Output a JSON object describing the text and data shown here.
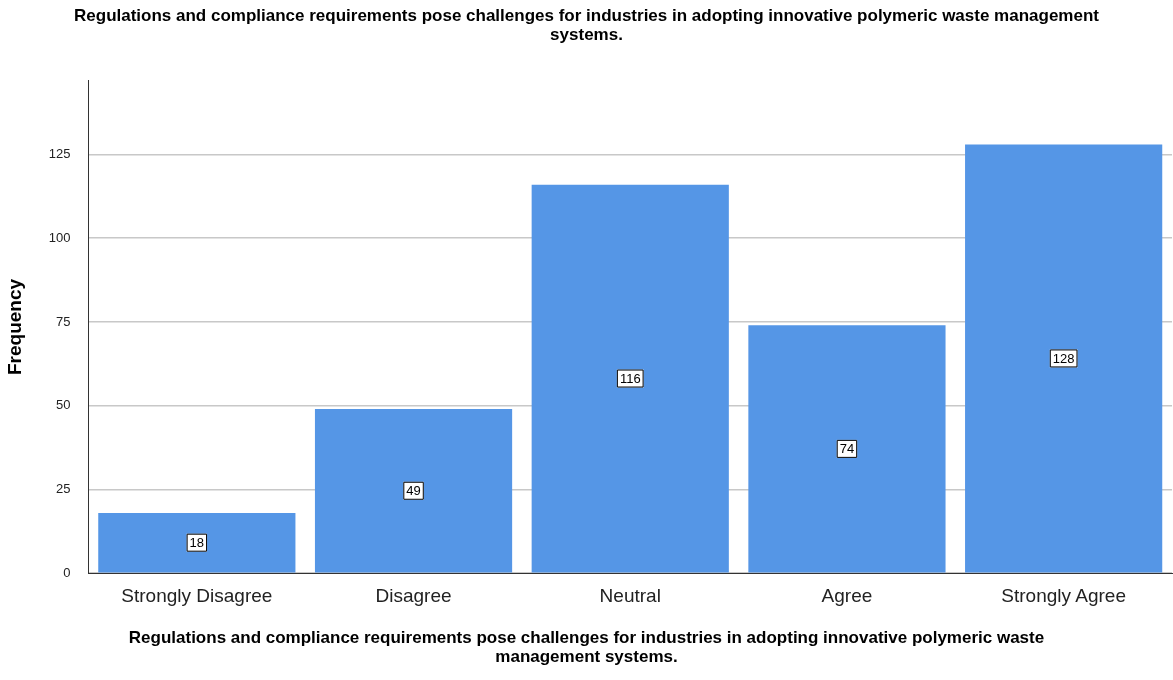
{
  "chart_data": {
    "type": "bar",
    "title": "Regulations and compliance requirements pose challenges for industries in adopting innovative polymeric waste management systems.",
    "xlabel": "Regulations and compliance requirements pose challenges for industries in adopting innovative polymeric waste management systems.",
    "ylabel": "Frequency",
    "categories": [
      "Strongly Disagree",
      "Disagree",
      "Neutral",
      "Agree",
      "Strongly Agree"
    ],
    "values": [
      18,
      49,
      116,
      74,
      128
    ],
    "color": "#5596e6",
    "ylim": [
      0,
      147
    ],
    "yticks": [
      0,
      25,
      50,
      75,
      100,
      125
    ],
    "grid": "y",
    "data_labels": true,
    "legend": false
  }
}
